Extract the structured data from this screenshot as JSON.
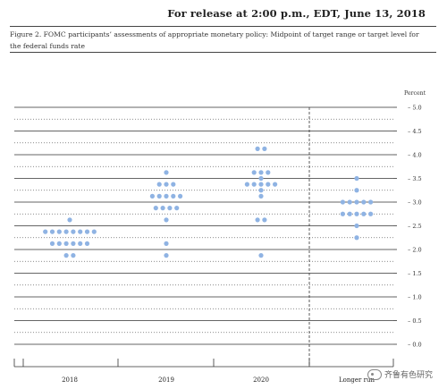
{
  "header": {
    "release_text": "For release at 2:00 p.m., EDT, June 13, 2018",
    "caption": "Figure 2. FOMC participants’ assessments of appropriate monetary policy: Midpoint of target range or target level for the federal funds rate"
  },
  "watermark": {
    "text": "齐鲁有色研究",
    "icon": "wechat-logo-icon"
  },
  "chart_data": {
    "type": "scatter",
    "title": "",
    "ylabel": "Percent",
    "ylim": [
      0.0,
      5.0
    ],
    "y_ticks": [
      "0.0",
      "0.5",
      "1.0",
      "1.5",
      "2.0",
      "2.5",
      "3.0",
      "3.5",
      "4.0",
      "4.5",
      "5.0"
    ],
    "categories": [
      "2018",
      "2019",
      "2020",
      "Longer run"
    ],
    "grid": true,
    "dot_color": "#8fb3e3",
    "series": [
      {
        "category": "2018",
        "points": [
          {
            "y": 2.625,
            "count": 1
          },
          {
            "y": 2.375,
            "count": 8
          },
          {
            "y": 2.125,
            "count": 6
          },
          {
            "y": 1.875,
            "count": 2
          }
        ]
      },
      {
        "category": "2019",
        "points": [
          {
            "y": 3.625,
            "count": 1
          },
          {
            "y": 3.375,
            "count": 3
          },
          {
            "y": 3.125,
            "count": 5
          },
          {
            "y": 2.875,
            "count": 4
          },
          {
            "y": 2.625,
            "count": 1
          },
          {
            "y": 2.125,
            "count": 1
          },
          {
            "y": 1.875,
            "count": 1
          }
        ]
      },
      {
        "category": "2020",
        "points": [
          {
            "y": 4.125,
            "count": 2
          },
          {
            "y": 3.625,
            "count": 3
          },
          {
            "y": 3.5,
            "count": 1
          },
          {
            "y": 3.375,
            "count": 5
          },
          {
            "y": 3.25,
            "count": 1
          },
          {
            "y": 3.125,
            "count": 1
          },
          {
            "y": 2.625,
            "count": 2
          },
          {
            "y": 1.875,
            "count": 1
          }
        ]
      },
      {
        "category": "Longer run",
        "points": [
          {
            "y": 3.5,
            "count": 1
          },
          {
            "y": 3.25,
            "count": 1
          },
          {
            "y": 3.0,
            "count": 5
          },
          {
            "y": 2.75,
            "count": 5
          },
          {
            "y": 2.5,
            "count": 1
          },
          {
            "y": 2.25,
            "count": 1
          }
        ]
      }
    ]
  }
}
